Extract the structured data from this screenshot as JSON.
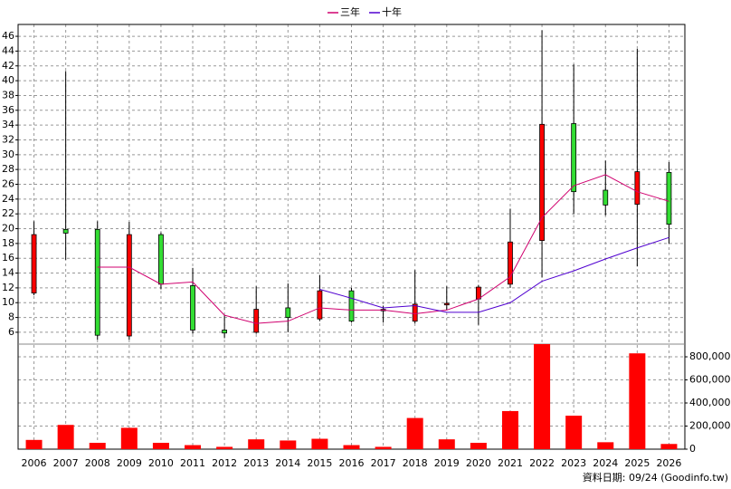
{
  "chart_data": {
    "type": "candlestick",
    "categories": [
      "2006",
      "2007",
      "2008",
      "2009",
      "2010",
      "2011",
      "2012",
      "2013",
      "2014",
      "2015",
      "2016",
      "2017",
      "2018",
      "2019",
      "2020",
      "2021",
      "2022",
      "2023",
      "2024",
      "2025",
      "2026"
    ],
    "open": [
      11.3,
      19.9,
      19.9,
      5.5,
      19.2,
      12.3,
      6.3,
      6.0,
      9.3,
      7.8,
      11.6,
      9.1,
      7.5,
      9.7,
      10.5,
      12.5,
      18.4,
      34.2,
      25.2,
      23.3,
      27.6
    ],
    "high": [
      21.0,
      41.3,
      21.0,
      20.9,
      19.5,
      14.7,
      8.3,
      12.2,
      12.6,
      13.7,
      12.0,
      9.6,
      14.4,
      12.2,
      12.4,
      22.7,
      46.8,
      42.2,
      29.2,
      44.3,
      29.0
    ],
    "low": [
      11.0,
      15.8,
      5.0,
      5.0,
      11.8,
      5.8,
      5.2,
      5.8,
      6.0,
      7.5,
      7.3,
      7.3,
      7.2,
      9.0,
      7.0,
      12.0,
      13.4,
      22.0,
      21.8,
      14.9,
      18.0
    ],
    "close": [
      19.2,
      19.4,
      5.6,
      19.2,
      12.5,
      6.3,
      5.9,
      9.1,
      8.0,
      11.6,
      7.5,
      8.9,
      9.8,
      9.9,
      12.1,
      18.2,
      34.1,
      25.0,
      23.2,
      27.7,
      20.6
    ],
    "up_color": "#ff0000",
    "down_color": "#33dd33",
    "series": [
      {
        "name": "三年",
        "color": "#d0006f",
        "values": [
          null,
          null,
          14.8,
          14.8,
          12.5,
          12.8,
          8.3,
          7.2,
          7.5,
          9.3,
          9.0,
          9.0,
          8.5,
          9.0,
          10.5,
          13.5,
          21.5,
          25.8,
          27.3,
          25.0,
          23.7
        ]
      },
      {
        "name": "十年",
        "color": "#5000d0",
        "values": [
          null,
          null,
          null,
          null,
          null,
          null,
          null,
          null,
          null,
          11.8,
          10.6,
          9.3,
          9.6,
          8.7,
          8.7,
          10.0,
          12.9,
          14.3,
          15.9,
          17.4,
          18.8
        ]
      }
    ],
    "volume": {
      "color": "#ff0000",
      "values": [
        80000,
        210000,
        55000,
        185000,
        55000,
        35000,
        20000,
        85000,
        75000,
        90000,
        35000,
        20000,
        270000,
        85000,
        55000,
        330000,
        910000,
        290000,
        60000,
        830000,
        45000
      ]
    },
    "ylim": [
      4.4,
      47.6
    ],
    "yticks": [
      6,
      8,
      10,
      12,
      14,
      16,
      18,
      20,
      22,
      24,
      26,
      28,
      30,
      32,
      34,
      36,
      38,
      40,
      42,
      44,
      46
    ],
    "y2lim": [
      0,
      910000
    ],
    "y2ticks": [
      0,
      {
        "value": 200000,
        "label": "200,000"
      },
      {
        "value": 400000,
        "label": "400,000"
      },
      {
        "value": 600000,
        "label": "600,000"
      },
      {
        "value": 800000,
        "label": "800,000"
      }
    ],
    "grid": true,
    "footer": "資料日期: 09/24 (Goodinfo.tw)"
  }
}
